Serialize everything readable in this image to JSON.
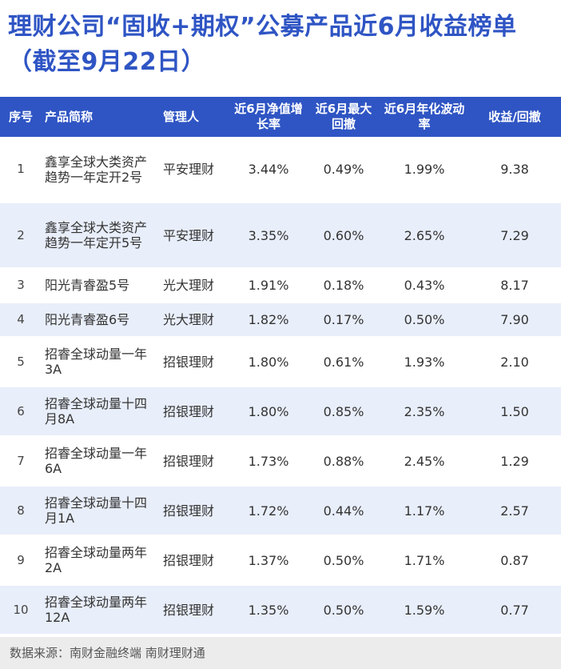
{
  "title": "理财公司“固收+期权”公募产品近6月收益榜单（截至9月22日）",
  "headers": {
    "no": "序号",
    "name": "产品简称",
    "manager": "管理人",
    "growth": "近6月净值增长率",
    "drawdown": "近6月最大回撤",
    "volatility": "近6月年化波动率",
    "ratio": "收益/回撤"
  },
  "rows": [
    {
      "no": "1",
      "name": "鑫享全球大类资产趋势一年定开2号",
      "manager": "平安理财",
      "growth": "3.44%",
      "drawdown": "0.49%",
      "volatility": "1.99%",
      "ratio": "9.38"
    },
    {
      "no": "2",
      "name": "鑫享全球大类资产趋势一年定开5号",
      "manager": "平安理财",
      "growth": "3.35%",
      "drawdown": "0.60%",
      "volatility": "2.65%",
      "ratio": "7.29"
    },
    {
      "no": "3",
      "name": "阳光青睿盈5号",
      "manager": "光大理财",
      "growth": "1.91%",
      "drawdown": "0.18%",
      "volatility": "0.43%",
      "ratio": "8.17"
    },
    {
      "no": "4",
      "name": "阳光青睿盈6号",
      "manager": "光大理财",
      "growth": "1.82%",
      "drawdown": "0.17%",
      "volatility": "0.50%",
      "ratio": "7.90"
    },
    {
      "no": "5",
      "name": "招睿全球动量一年3A",
      "manager": "招银理财",
      "growth": "1.80%",
      "drawdown": "0.61%",
      "volatility": "1.93%",
      "ratio": "2.10"
    },
    {
      "no": "6",
      "name": "招睿全球动量十四月8A",
      "manager": "招银理财",
      "growth": "1.80%",
      "drawdown": "0.85%",
      "volatility": "2.35%",
      "ratio": "1.50"
    },
    {
      "no": "7",
      "name": "招睿全球动量一年6A",
      "manager": "招银理财",
      "growth": "1.73%",
      "drawdown": "0.88%",
      "volatility": "2.45%",
      "ratio": "1.29"
    },
    {
      "no": "8",
      "name": "招睿全球动量十四月1A",
      "manager": "招银理财",
      "growth": "1.72%",
      "drawdown": "0.44%",
      "volatility": "1.17%",
      "ratio": "2.57"
    },
    {
      "no": "9",
      "name": "招睿全球动量两年2A",
      "manager": "招银理财",
      "growth": "1.37%",
      "drawdown": "0.50%",
      "volatility": "1.71%",
      "ratio": "0.87"
    },
    {
      "no": "10",
      "name": "招睿全球动量两年12A",
      "manager": "招银理财",
      "growth": "1.35%",
      "drawdown": "0.50%",
      "volatility": "1.59%",
      "ratio": "0.77"
    }
  ],
  "source": "数据来源：南财金融终端 南财理财通"
}
